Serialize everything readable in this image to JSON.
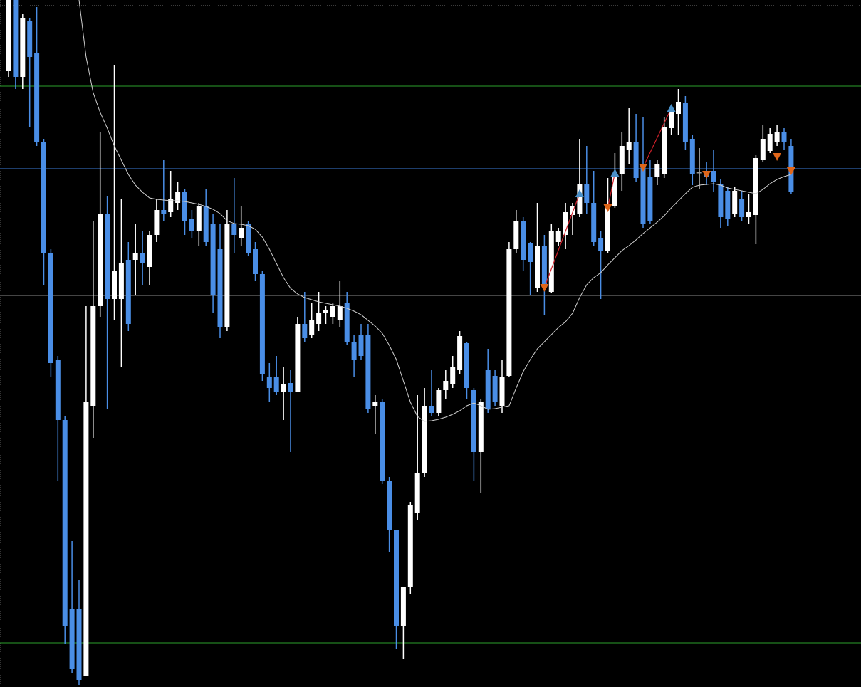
{
  "chart_data": {
    "type": "candlestick",
    "ylim": [
      0,
      965
    ],
    "up_color": "#ffffff",
    "down_color": "#4a8ee6",
    "doji_color": "#9a9a9a",
    "open": [
      865,
      965,
      857,
      935,
      890,
      765,
      610,
      460,
      375,
      110,
      110,
      15,
      395,
      535,
      665,
      545,
      545,
      600,
      600,
      610,
      590,
      635,
      670,
      667,
      680,
      695,
      657,
      640,
      675,
      650,
      615,
      505,
      650,
      630,
      650,
      615,
      580,
      435,
      435,
      415,
      427,
      415,
      510,
      495,
      510,
      525,
      520,
      515,
      540,
      485,
      495,
      495,
      395,
      400,
      290,
      220,
      85,
      140,
      245,
      300,
      395,
      385,
      417,
      425,
      445,
      483,
      417,
      330,
      445,
      437,
      395,
      437,
      615,
      655,
      623,
      560,
      620,
      555,
      625,
      635,
      663,
      665,
      707,
      680,
      630,
      613,
      675,
      720,
      755,
      765,
      735,
      717,
      717,
      720,
      785,
      805,
      820,
      770,
      723,
      725,
      725,
      707,
      697,
      665,
      685,
      660,
      663,
      740,
      753,
      765,
      780,
      760
    ],
    "high": [
      965,
      965,
      945,
      940,
      955,
      770,
      615,
      465,
      380,
      205,
      150,
      535,
      655,
      780,
      690,
      873,
      685,
      625,
      650,
      640,
      640,
      685,
      740,
      725,
      710,
      700,
      670,
      680,
      700,
      665,
      650,
      670,
      715,
      675,
      655,
      625,
      585,
      455,
      465,
      450,
      445,
      520,
      555,
      540,
      555,
      535,
      540,
      570,
      555,
      495,
      510,
      510,
      410,
      405,
      295,
      220,
      140,
      260,
      410,
      420,
      445,
      420,
      445,
      465,
      500,
      485,
      420,
      405,
      475,
      445,
      460,
      625,
      670,
      660,
      625,
      680,
      635,
      650,
      645,
      680,
      680,
      770,
      760,
      725,
      640,
      715,
      750,
      780,
      813,
      805,
      800,
      740,
      740,
      800,
      817,
      840,
      830,
      775,
      757,
      737,
      755,
      713,
      703,
      703,
      697,
      693,
      747,
      790,
      785,
      790,
      785,
      770
    ],
    "low": [
      857,
      840,
      840,
      787,
      760,
      565,
      435,
      290,
      60,
      20,
      3,
      15,
      350,
      520,
      390,
      515,
      450,
      500,
      550,
      565,
      565,
      625,
      655,
      660,
      670,
      635,
      630,
      620,
      620,
      525,
      490,
      500,
      610,
      620,
      605,
      570,
      430,
      400,
      410,
      375,
      330,
      415,
      485,
      490,
      500,
      510,
      510,
      505,
      480,
      435,
      460,
      385,
      355,
      285,
      190,
      53,
      40,
      130,
      235,
      295,
      380,
      380,
      405,
      420,
      440,
      405,
      290,
      273,
      385,
      395,
      385,
      435,
      610,
      585,
      550,
      555,
      522,
      553,
      620,
      615,
      635,
      660,
      665,
      620,
      545,
      610,
      673,
      697,
      735,
      710,
      645,
      650,
      705,
      715,
      775,
      775,
      755,
      705,
      700,
      705,
      695,
      645,
      647,
      660,
      655,
      650,
      622,
      737,
      750,
      760,
      755,
      693
    ],
    "close": [
      965,
      857,
      940,
      885,
      765,
      610,
      455,
      375,
      85,
      25,
      10,
      400,
      535,
      665,
      545,
      585,
      595,
      510,
      610,
      595,
      635,
      670,
      665,
      685,
      695,
      655,
      640,
      675,
      625,
      550,
      505,
      650,
      635,
      645,
      610,
      580,
      440,
      420,
      415,
      425,
      415,
      510,
      490,
      515,
      525,
      530,
      535,
      535,
      485,
      460,
      465,
      390,
      400,
      290,
      220,
      85,
      140,
      255,
      300,
      395,
      385,
      417,
      430,
      450,
      493,
      420,
      330,
      400,
      390,
      400,
      435,
      615,
      655,
      600,
      597,
      620,
      565,
      640,
      640,
      667,
      675,
      707,
      680,
      625,
      613,
      675,
      720,
      760,
      765,
      715,
      650,
      655,
      735,
      787,
      813,
      822,
      765,
      720,
      723,
      717,
      710,
      660,
      657,
      697,
      660,
      667,
      743,
      770,
      777,
      780,
      765,
      695
    ],
    "ma": {
      "color": "#cfcfcf",
      "values": [
        null,
        null,
        null,
        null,
        null,
        null,
        null,
        null,
        null,
        null,
        965,
        885,
        835,
        807,
        785,
        760,
        740,
        720,
        705,
        695,
        687,
        685,
        684,
        683,
        683,
        682,
        680,
        678,
        675,
        671,
        665,
        655,
        651,
        650,
        648,
        643,
        632,
        615,
        595,
        575,
        560,
        552,
        547,
        544,
        541,
        539,
        537,
        535,
        532,
        528,
        523,
        515,
        507,
        497,
        480,
        460,
        430,
        400,
        380,
        373,
        374,
        376,
        379,
        383,
        388,
        395,
        399,
        395,
        390,
        391,
        393,
        395,
        420,
        443,
        460,
        475,
        485,
        495,
        505,
        513,
        525,
        547,
        565,
        575,
        582,
        593,
        603,
        613,
        620,
        628,
        637,
        645,
        653,
        662,
        673,
        683,
        693,
        702,
        705,
        706,
        707,
        705,
        701,
        699,
        697,
        695,
        693,
        699,
        707,
        713,
        717,
        720
      ]
    },
    "buy_signals": {
      "color": "#4a90c8",
      "values": [
        null,
        null,
        null,
        null,
        null,
        null,
        null,
        null,
        null,
        null,
        null,
        null,
        null,
        null,
        null,
        null,
        null,
        null,
        null,
        null,
        null,
        null,
        null,
        null,
        null,
        null,
        null,
        null,
        null,
        null,
        null,
        null,
        null,
        null,
        null,
        null,
        null,
        null,
        null,
        null,
        null,
        null,
        null,
        null,
        null,
        null,
        null,
        null,
        null,
        null,
        null,
        null,
        null,
        null,
        null,
        null,
        null,
        null,
        null,
        null,
        null,
        null,
        null,
        null,
        null,
        null,
        null,
        null,
        null,
        null,
        null,
        null,
        null,
        null,
        null,
        null,
        null,
        null,
        null,
        null,
        null,
        693,
        null,
        null,
        null,
        null,
        722,
        null,
        null,
        null,
        null,
        null,
        null,
        null,
        813,
        null,
        null,
        null,
        null,
        null,
        null,
        null,
        null,
        null,
        null,
        null,
        null,
        null,
        null,
        null,
        null,
        null
      ]
    },
    "sell_signals": {
      "color": "#e0661a",
      "values": [
        null,
        null,
        null,
        null,
        null,
        null,
        null,
        null,
        null,
        null,
        null,
        null,
        null,
        null,
        null,
        null,
        null,
        null,
        null,
        null,
        null,
        null,
        null,
        null,
        null,
        null,
        null,
        null,
        null,
        null,
        null,
        null,
        null,
        null,
        null,
        null,
        null,
        null,
        null,
        null,
        null,
        null,
        null,
        null,
        null,
        null,
        null,
        null,
        null,
        null,
        null,
        null,
        null,
        null,
        null,
        null,
        null,
        null,
        null,
        null,
        null,
        null,
        null,
        null,
        null,
        null,
        null,
        null,
        null,
        null,
        null,
        null,
        null,
        null,
        null,
        null,
        561,
        null,
        null,
        null,
        null,
        null,
        null,
        null,
        null,
        673,
        null,
        null,
        null,
        null,
        730,
        null,
        null,
        null,
        null,
        null,
        null,
        null,
        null,
        720,
        null,
        null,
        null,
        null,
        null,
        null,
        null,
        null,
        null,
        745,
        null,
        725
      ]
    },
    "link_color": "#d0202a",
    "levels": [
      {
        "value": 957,
        "color": "#777777",
        "dashed": true
      },
      {
        "value": 844,
        "color": "#2ca02c",
        "dashed": false
      },
      {
        "value": 728,
        "color": "#3b7dd8",
        "dashed": false
      },
      {
        "value": 550,
        "color": "#8a8a8a",
        "dashed": false
      },
      {
        "value": 62,
        "color": "#2ca02c",
        "dashed": false
      }
    ]
  }
}
